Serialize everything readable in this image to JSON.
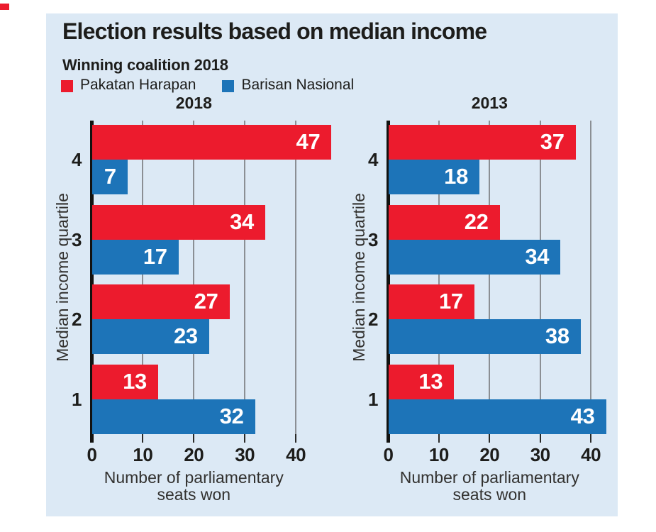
{
  "brand": {
    "tab_color": "#ec1b2d"
  },
  "header": {
    "title": "Election results based on median income",
    "subtitle": "Winning coalition 2018"
  },
  "legend": [
    {
      "label": "Pakatan Harapan",
      "color": "#ec1b2d"
    },
    {
      "label": "Barisan Nasional",
      "color": "#1d74b8"
    }
  ],
  "colors": {
    "page_background": "#ffffff",
    "panel_background": "#dce9f5",
    "red": "#ec1b2d",
    "blue": "#1d74b8",
    "gridline": "#8b8f94",
    "axis": "#121210",
    "text": "#1d1d1b",
    "muted_text": "#32312f",
    "value_label": "#ffffff"
  },
  "chart_data": [
    {
      "type": "bar",
      "orientation": "horizontal",
      "title": "2018",
      "ylabel": "Median income quartile",
      "xlabel": "Number of parliamentary seats won",
      "xlabel_lines": [
        "Number of parliamentary",
        "seats won"
      ],
      "categories": [
        "4",
        "3",
        "2",
        "1"
      ],
      "series": [
        {
          "name": "Pakatan Harapan",
          "color": "#ec1b2d",
          "values": [
            47,
            34,
            27,
            13
          ]
        },
        {
          "name": "Barisan Nasional",
          "color": "#1d74b8",
          "values": [
            7,
            17,
            23,
            32
          ]
        }
      ],
      "xticks": [
        0,
        10,
        20,
        30,
        40
      ],
      "xlim": [
        0,
        47
      ],
      "grid": true,
      "value_labels": true,
      "legend_position": "top"
    },
    {
      "type": "bar",
      "orientation": "horizontal",
      "title": "2013",
      "ylabel": "Median income quartile",
      "xlabel": "Number of parliamentary seats won",
      "xlabel_lines": [
        "Number of parliamentary",
        "seats won"
      ],
      "categories": [
        "4",
        "3",
        "2",
        "1"
      ],
      "series": [
        {
          "name": "Pakatan Harapan",
          "color": "#ec1b2d",
          "values": [
            37,
            22,
            17,
            13
          ]
        },
        {
          "name": "Barisan Nasional",
          "color": "#1d74b8",
          "values": [
            18,
            34,
            38,
            43
          ]
        }
      ],
      "xticks": [
        0,
        10,
        20,
        30,
        40
      ],
      "xlim": [
        0,
        43
      ],
      "grid": true,
      "value_labels": true,
      "legend_position": "top"
    }
  ]
}
